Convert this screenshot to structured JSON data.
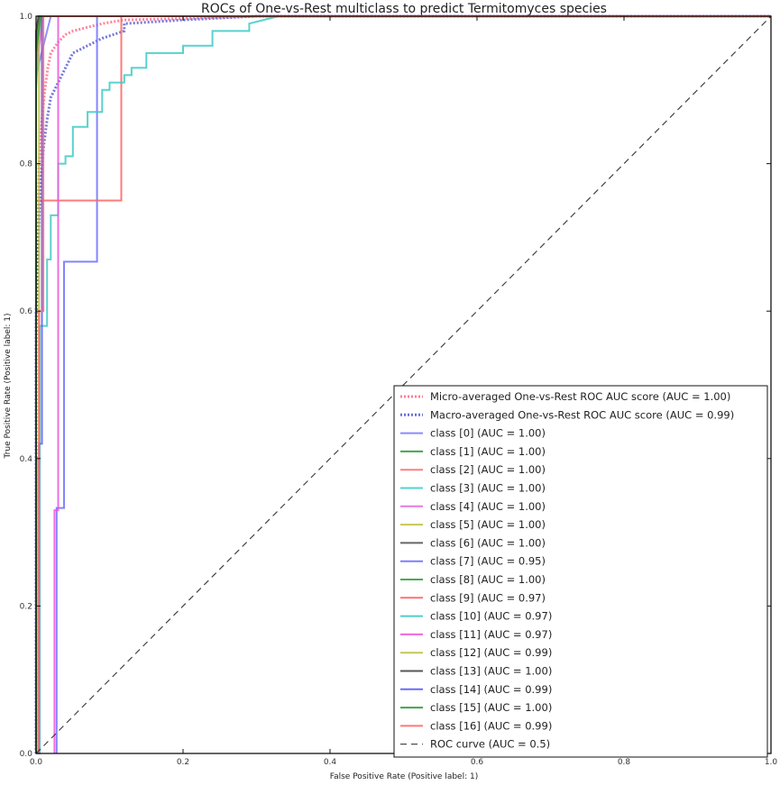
{
  "chart_data": {
    "type": "line",
    "title": "ROCs of One-vs-Rest multiclass to predict Termitomyces species",
    "xlabel": "False Positive Rate (Positive label: 1)",
    "ylabel": "True Positive Rate (Positive label: 1)",
    "xlim": [
      0,
      1
    ],
    "ylim": [
      0,
      1
    ],
    "x_ticks": [
      "0.0",
      "0.2",
      "0.4",
      "0.6",
      "0.8",
      "1.0"
    ],
    "y_ticks": [
      "0.0",
      "0.2",
      "0.4",
      "0.6",
      "0.8",
      "1.0"
    ],
    "grid": false,
    "legend_position": "lower-right",
    "series": [
      {
        "name": "Micro-averaged One-vs-Rest ROC AUC score (AUC = 1.00)",
        "color": "#ff6f8c",
        "style": "dotted",
        "x": [
          0,
          0,
          0.004,
          0.008,
          0.012,
          0.016,
          0.02,
          0.03,
          0.04,
          0.05,
          0.07,
          0.09,
          0.12,
          0.2,
          0.3,
          1.0
        ],
        "y": [
          0,
          0.55,
          0.8,
          0.86,
          0.9,
          0.93,
          0.95,
          0.965,
          0.975,
          0.98,
          0.985,
          0.99,
          0.995,
          0.997,
          1.0,
          1.0
        ]
      },
      {
        "name": "Macro-averaged One-vs-Rest ROC AUC score (AUC = 0.99)",
        "color": "#5a5fd0",
        "style": "dotted",
        "x": [
          0,
          0,
          0.005,
          0.01,
          0.015,
          0.02,
          0.03,
          0.04,
          0.05,
          0.07,
          0.09,
          0.12,
          0.12,
          0.2,
          0.3,
          1.0
        ],
        "y": [
          0,
          0.6,
          0.75,
          0.82,
          0.86,
          0.89,
          0.91,
          0.93,
          0.95,
          0.96,
          0.97,
          0.98,
          0.99,
          0.995,
          1.0,
          1.0
        ]
      },
      {
        "name": "class [0] (AUC = 1.00)",
        "color": "#7d7dff",
        "style": "solid",
        "x": [
          0,
          0,
          0.02,
          1.0
        ],
        "y": [
          0,
          0.92,
          1.0,
          1.0
        ]
      },
      {
        "name": "class [1] (AUC = 1.00)",
        "color": "#2e9c3a",
        "style": "solid",
        "x": [
          0,
          0,
          0.005,
          1.0
        ],
        "y": [
          0,
          0.95,
          1.0,
          1.0
        ]
      },
      {
        "name": "class [2] (AUC = 1.00)",
        "color": "#ff7070",
        "style": "solid",
        "x": [
          0,
          0,
          0.008,
          1.0
        ],
        "y": [
          0,
          0.94,
          1.0,
          1.0
        ]
      },
      {
        "name": "class [3] (AUC = 1.00)",
        "color": "#3fcfc8",
        "style": "solid",
        "x": [
          0,
          0,
          0.006,
          1.0
        ],
        "y": [
          0,
          0.9,
          1.0,
          1.0
        ]
      },
      {
        "name": "class [4] (AUC = 1.00)",
        "color": "#e66ae0",
        "style": "solid",
        "x": [
          0,
          0,
          0.01,
          1.0
        ],
        "y": [
          0,
          0.93,
          1.0,
          1.0
        ]
      },
      {
        "name": "class [5] (AUC = 1.00)",
        "color": "#c3c040",
        "style": "solid",
        "x": [
          0,
          0,
          0.004,
          1.0
        ],
        "y": [
          0,
          0.96,
          1.0,
          1.0
        ]
      },
      {
        "name": "class [6] (AUC = 1.00)",
        "color": "#555555",
        "style": "solid",
        "x": [
          0,
          0,
          0.003,
          1.0
        ],
        "y": [
          0,
          0.97,
          1.0,
          1.0
        ]
      },
      {
        "name": "class [7] (AUC = 0.95)",
        "color": "#6f6fff",
        "style": "solid",
        "x": [
          0.028,
          0.028,
          0.038,
          0.038,
          0.083,
          0.083,
          1.0
        ],
        "y": [
          0,
          0.333,
          0.333,
          0.667,
          0.667,
          1.0,
          1.0
        ]
      },
      {
        "name": "class [8] (AUC = 1.00)",
        "color": "#36a042",
        "style": "solid",
        "x": [
          0,
          0,
          0.004,
          1.0
        ],
        "y": [
          0,
          0.97,
          1.0,
          1.0
        ]
      },
      {
        "name": "class [9] (AUC = 0.97)",
        "color": "#ff6262",
        "style": "solid",
        "x": [
          0,
          0,
          0.004,
          0.004,
          0.116,
          0.116,
          1.0
        ],
        "y": [
          0,
          0.75,
          0.75,
          0.75,
          0.75,
          1.0,
          1.0
        ]
      },
      {
        "name": "class [10] (AUC = 0.97)",
        "color": "#3ccac4",
        "style": "solid",
        "x": [
          0,
          0.005,
          0.005,
          0.015,
          0.015,
          0.02,
          0.02,
          0.03,
          0.03,
          0.04,
          0.04,
          0.05,
          0.05,
          0.07,
          0.07,
          0.09,
          0.09,
          0.1,
          0.1,
          0.12,
          0.12,
          0.13,
          0.13,
          0.15,
          0.15,
          0.2,
          0.2,
          0.24,
          0.24,
          0.29,
          0.29,
          0.33,
          1.0
        ],
        "y": [
          0,
          0,
          0.58,
          0.58,
          0.67,
          0.67,
          0.73,
          0.73,
          0.8,
          0.8,
          0.81,
          0.81,
          0.85,
          0.85,
          0.87,
          0.87,
          0.9,
          0.9,
          0.91,
          0.91,
          0.92,
          0.92,
          0.93,
          0.93,
          0.95,
          0.95,
          0.96,
          0.96,
          0.98,
          0.98,
          0.99,
          1.0,
          1.0
        ]
      },
      {
        "name": "class [11] (AUC = 0.97)",
        "color": "#ee55dd",
        "style": "solid",
        "x": [
          0.025,
          0.025,
          0.03,
          0.03,
          1.0
        ],
        "y": [
          0,
          0.33,
          0.33,
          1.0,
          1.0
        ]
      },
      {
        "name": "class [12] (AUC = 0.99)",
        "color": "#c0c040",
        "style": "solid",
        "x": [
          0.002,
          0.002,
          0.004,
          0.004,
          1.0
        ],
        "y": [
          0,
          0.4,
          0.4,
          1.0,
          1.0
        ]
      },
      {
        "name": "class [13] (AUC = 1.00)",
        "color": "#444444",
        "style": "solid",
        "x": [
          0,
          0,
          0.004,
          1.0
        ],
        "y": [
          0,
          0.98,
          1.0,
          1.0
        ]
      },
      {
        "name": "class [14] (AUC = 0.99)",
        "color": "#5a5aff",
        "style": "solid",
        "x": [
          0.004,
          0.004,
          0.008,
          0.008,
          1.0
        ],
        "y": [
          0,
          0.42,
          0.42,
          1.0,
          1.0
        ]
      },
      {
        "name": "class [15] (AUC = 1.00)",
        "color": "#2b9b35",
        "style": "solid",
        "x": [
          0,
          0,
          0.006,
          1.0
        ],
        "y": [
          0,
          0.95,
          1.0,
          1.0
        ]
      },
      {
        "name": "class [16] (AUC = 0.99)",
        "color": "#ff6868",
        "style": "solid",
        "x": [
          0.004,
          0.004,
          0.01,
          0.01,
          1.0
        ],
        "y": [
          0,
          0.6,
          0.6,
          1.0,
          1.0
        ]
      },
      {
        "name": "ROC curve (AUC = 0.5)",
        "color": "#222222",
        "style": "dashed",
        "x": [
          0,
          1
        ],
        "y": [
          0,
          1
        ]
      }
    ]
  }
}
